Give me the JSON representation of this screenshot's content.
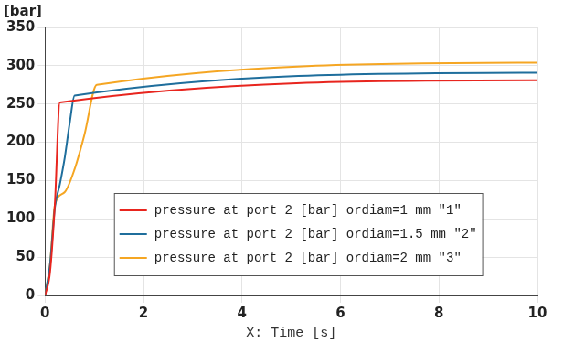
{
  "chart_data": {
    "type": "line",
    "ylabel": "[bar]",
    "xlabel": "X: Time [s]",
    "xlim": [
      0,
      10
    ],
    "xticks": [
      0,
      2,
      4,
      6,
      8,
      10
    ],
    "ylim": [
      0,
      350
    ],
    "yticks": [
      0,
      50,
      100,
      150,
      200,
      250,
      300,
      350
    ],
    "grid": true,
    "legend": "bottom",
    "series": [
      {
        "name": "pressure at port 2 [bar] ordiam=1 mm ″1″",
        "color": "#e8251e",
        "x": [
          0,
          0.1,
          0.2,
          0.3,
          10
        ],
        "values": [
          0,
          30,
          120,
          252,
          281
        ]
      },
      {
        "name": "pressure at port 2 [bar] ordiam=1.5 mm ″2″",
        "color": "#1f6e9c",
        "x": [
          0,
          0.1,
          0.2,
          0.3,
          0.4,
          0.5,
          0.6,
          10
        ],
        "values": [
          0,
          40,
          115,
          145,
          180,
          225,
          261,
          291
        ]
      },
      {
        "name": "pressure at port 2 [bar] ordiam=2 mm ″3″",
        "color": "#f5a623",
        "x": [
          0,
          0.1,
          0.2,
          0.4,
          0.6,
          0.8,
          1.05,
          10
        ],
        "values": [
          0,
          40,
          118,
          135,
          165,
          210,
          275,
          304
        ]
      }
    ]
  }
}
